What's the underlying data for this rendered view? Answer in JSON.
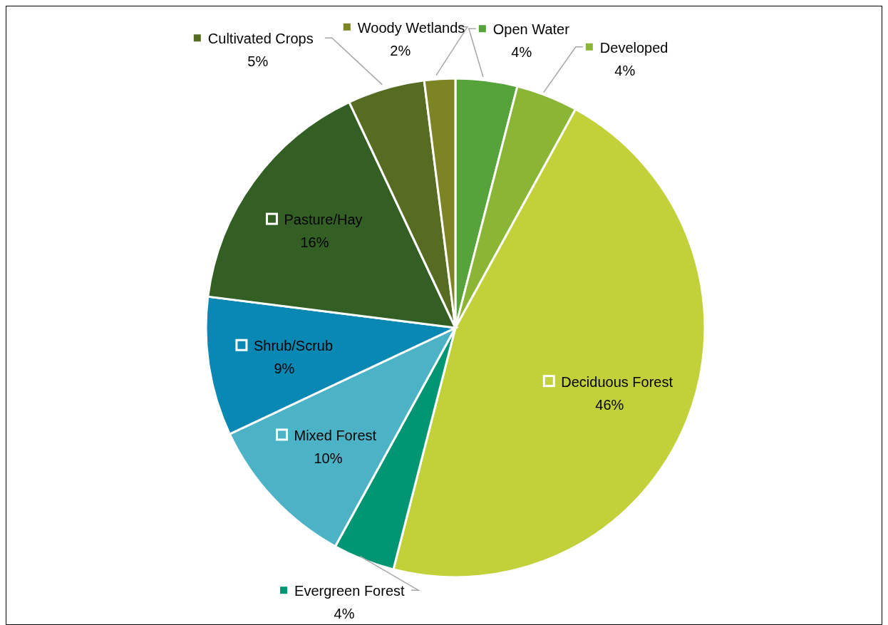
{
  "chart_data": {
    "type": "pie",
    "categories": [
      "Open Water",
      "Developed",
      "Deciduous Forest",
      "Evergreen Forest",
      "Mixed Forest",
      "Shrub/Scrub",
      "Pasture/Hay",
      "Cultivated Crops",
      "Woody Wetlands"
    ],
    "values": [
      4,
      4,
      46,
      4,
      10,
      9,
      16,
      5,
      2
    ],
    "value_labels": [
      "4%",
      "4%",
      "46%",
      "4%",
      "10%",
      "9%",
      "16%",
      "5%",
      "2%"
    ],
    "colors": [
      "#55a33a",
      "#8bb635",
      "#c2d03a",
      "#009673",
      "#4bb3c5",
      "#0a88b4",
      "#335f24",
      "#566c22",
      "#7d8424"
    ],
    "legend": "center"
  }
}
